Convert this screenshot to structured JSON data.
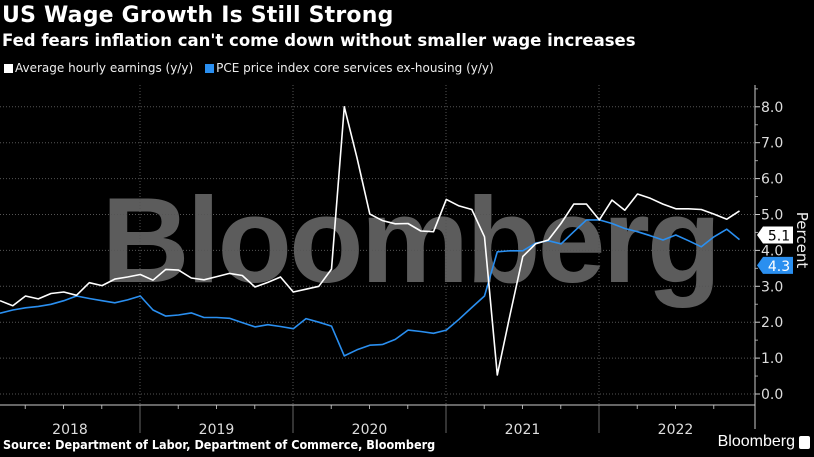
{
  "chart_data": {
    "type": "line",
    "title": "US Wage Growth Is Still Strong",
    "subtitle": "Fed fears inflation can't come down without smaller wage increases",
    "ylabel": "Percent",
    "xlabel": "",
    "ylim": [
      -0.3,
      8.8
    ],
    "yticks": [
      "0.0",
      "1.0",
      "2.0",
      "3.0",
      "4.0",
      "5.0",
      "6.0",
      "7.0",
      "8.0"
    ],
    "xticks": [
      "2018",
      "2019",
      "2020",
      "2021",
      "2022"
    ],
    "x_start": "2018-01",
    "x_end": "2022-11",
    "x_frequency": "monthly",
    "grid": true,
    "legend_position": "top-left",
    "y_axis_side": "right",
    "series": [
      {
        "name": "Average hourly earnings (y/y)",
        "color": "#ffffff",
        "last_label": "5.1",
        "values": [
          2.6,
          2.46,
          2.73,
          2.65,
          2.8,
          2.84,
          2.75,
          3.1,
          3.02,
          3.2,
          3.26,
          3.33,
          3.17,
          3.47,
          3.45,
          3.23,
          3.18,
          3.27,
          3.36,
          3.3,
          2.98,
          3.11,
          3.26,
          2.84,
          2.92,
          3.0,
          3.48,
          8.0,
          6.58,
          5.01,
          4.83,
          4.74,
          4.75,
          4.54,
          4.52,
          5.42,
          5.24,
          5.14,
          4.38,
          0.53,
          2.2,
          3.83,
          4.18,
          4.29,
          4.75,
          5.29,
          5.29,
          4.85,
          5.4,
          5.12,
          5.57,
          5.45,
          5.29,
          5.16,
          5.16,
          5.14,
          5.01,
          4.87,
          5.1
        ]
      },
      {
        "name": "PCE price index core services ex-housing (y/y)",
        "color": "#2a8ff0",
        "last_label": "4.3",
        "values": [
          2.25,
          2.34,
          2.4,
          2.44,
          2.5,
          2.6,
          2.73,
          2.66,
          2.6,
          2.54,
          2.62,
          2.73,
          2.34,
          2.17,
          2.2,
          2.26,
          2.13,
          2.13,
          2.11,
          1.99,
          1.87,
          1.93,
          1.88,
          1.82,
          2.1,
          2.0,
          1.89,
          1.06,
          1.23,
          1.36,
          1.38,
          1.52,
          1.78,
          1.74,
          1.69,
          1.78,
          2.08,
          2.41,
          2.73,
          3.96,
          3.99,
          3.99,
          4.2,
          4.27,
          4.18,
          4.52,
          4.85,
          4.85,
          4.75,
          4.61,
          4.52,
          4.41,
          4.29,
          4.43,
          4.27,
          4.1,
          4.38,
          4.59,
          4.3
        ]
      }
    ],
    "source": "Source: Department of Labor, Department of Commerce, Bloomberg",
    "watermark": "Bloomberg"
  },
  "brand": "Bloomberg"
}
